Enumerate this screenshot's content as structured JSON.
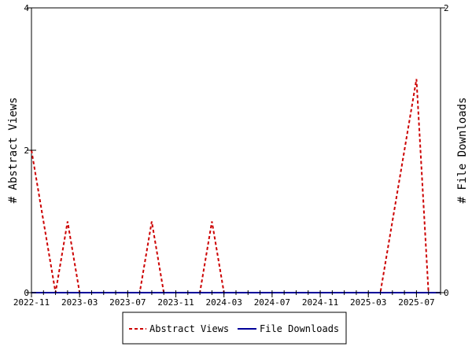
{
  "chart_data": {
    "type": "line",
    "title": "",
    "xlabel": "",
    "ylabel": "# Abstract Views",
    "y2label": "# File Downloads",
    "ylim": [
      0,
      4
    ],
    "y2lim": [
      0,
      2
    ],
    "yticks": [
      0,
      2,
      4
    ],
    "y2ticks": [
      0,
      2
    ],
    "xlim": [
      "2022-11",
      "2025-09"
    ],
    "xticks": [
      "2022-11",
      "2023-03",
      "2023-07",
      "2023-11",
      "2024-03",
      "2024-07",
      "2024-11",
      "2025-03",
      "2025-07"
    ],
    "grid": false,
    "legend": "bottom-center",
    "series": [
      {
        "name": "Abstract Views",
        "axis": "left",
        "color": "#cc0000",
        "style": "dashed",
        "x": [
          "2022-11",
          "2022-12",
          "2023-01",
          "2023-02",
          "2023-03",
          "2023-04",
          "2023-05",
          "2023-06",
          "2023-07",
          "2023-08",
          "2023-09",
          "2023-10",
          "2023-11",
          "2023-12",
          "2024-01",
          "2024-02",
          "2024-03",
          "2024-04",
          "2024-05",
          "2024-06",
          "2024-07",
          "2024-08",
          "2024-09",
          "2024-10",
          "2024-11",
          "2024-12",
          "2025-01",
          "2025-02",
          "2025-03",
          "2025-04",
          "2025-05",
          "2025-06",
          "2025-07",
          "2025-08"
        ],
        "values": [
          2,
          1,
          0,
          1,
          0,
          0,
          0,
          0,
          0,
          0,
          1,
          0,
          0,
          0,
          0,
          1,
          0,
          0,
          0,
          0,
          0,
          0,
          0,
          0,
          0,
          0,
          0,
          0,
          0,
          0,
          1,
          2,
          3,
          0
        ]
      },
      {
        "name": "File Downloads",
        "axis": "right",
        "color": "#000099",
        "style": "solid",
        "x": [
          "2022-11",
          "2025-09"
        ],
        "values": [
          0,
          0
        ]
      }
    ]
  }
}
